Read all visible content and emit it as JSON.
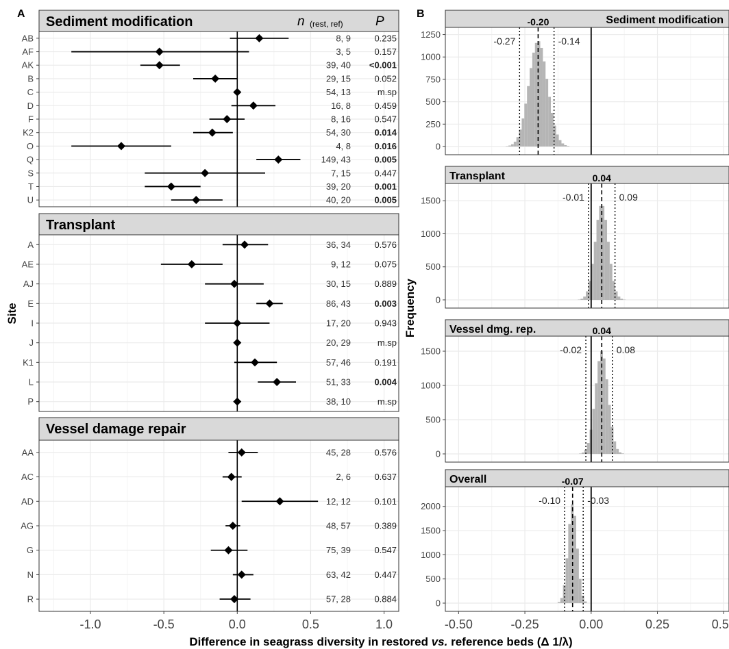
{
  "panel_a": {
    "letter": "A",
    "n_header": "n",
    "n_sub": "(rest, ref)",
    "p_header": "P",
    "ylabel": "Site",
    "xlim": [
      -1.35,
      1.1
    ],
    "xticks": [
      "-1.0",
      "-0.5",
      "0.0",
      "0.5",
      "1.0"
    ],
    "xtick_values": [
      -1.0,
      -0.5,
      0.0,
      0.5,
      1.0
    ],
    "groups": [
      {
        "title": "Sediment modification",
        "rows": [
          {
            "site": "AB",
            "est": 0.15,
            "lo": -0.05,
            "hi": 0.35,
            "n": "8,  9",
            "p": "0.235",
            "bold": false
          },
          {
            "site": "AF",
            "est": -0.53,
            "lo": -1.13,
            "hi": 0.08,
            "n": "3,  5",
            "p": "0.157",
            "bold": false
          },
          {
            "site": "AK",
            "est": -0.53,
            "lo": -0.66,
            "hi": -0.39,
            "n": "39, 40",
            "p": "<0.001",
            "bold": true
          },
          {
            "site": "B",
            "est": -0.15,
            "lo": -0.3,
            "hi": 0.0,
            "n": "29, 15",
            "p": "0.052",
            "bold": false
          },
          {
            "site": "C",
            "est": 0.0,
            "lo": null,
            "hi": null,
            "n": "54, 13",
            "p": "m.sp",
            "bold": false
          },
          {
            "site": "D",
            "est": 0.11,
            "lo": -0.04,
            "hi": 0.26,
            "n": "16,  8",
            "p": "0.459",
            "bold": false
          },
          {
            "site": "F",
            "est": -0.07,
            "lo": -0.19,
            "hi": 0.05,
            "n": "8, 16",
            "p": "0.547",
            "bold": false
          },
          {
            "site": "K2",
            "est": -0.17,
            "lo": -0.3,
            "hi": -0.03,
            "n": "54, 30",
            "p": "0.014",
            "bold": true
          },
          {
            "site": "O",
            "est": -0.79,
            "lo": -1.13,
            "hi": -0.45,
            "n": "4,  8",
            "p": "0.016",
            "bold": true
          },
          {
            "site": "Q",
            "est": 0.28,
            "lo": 0.13,
            "hi": 0.43,
            "n": "149, 43",
            "p": "0.005",
            "bold": true
          },
          {
            "site": "S",
            "est": -0.22,
            "lo": -0.63,
            "hi": 0.19,
            "n": "7, 15",
            "p": "0.447",
            "bold": false
          },
          {
            "site": "T",
            "est": -0.45,
            "lo": -0.63,
            "hi": -0.25,
            "n": "39, 20",
            "p": "0.001",
            "bold": true
          },
          {
            "site": "U",
            "est": -0.28,
            "lo": -0.45,
            "hi": -0.1,
            "n": "40, 20",
            "p": "0.005",
            "bold": true
          }
        ]
      },
      {
        "title": "Transplant",
        "rows": [
          {
            "site": "A",
            "est": 0.05,
            "lo": -0.1,
            "hi": 0.21,
            "n": "36, 34",
            "p": "0.576",
            "bold": false
          },
          {
            "site": "AE",
            "est": -0.31,
            "lo": -0.52,
            "hi": -0.1,
            "n": "9, 12",
            "p": "0.075",
            "bold": false
          },
          {
            "site": "AJ",
            "est": -0.02,
            "lo": -0.22,
            "hi": 0.18,
            "n": "30, 15",
            "p": "0.889",
            "bold": false
          },
          {
            "site": "E",
            "est": 0.22,
            "lo": 0.13,
            "hi": 0.31,
            "n": "86, 43",
            "p": "0.003",
            "bold": true
          },
          {
            "site": "I",
            "est": 0.0,
            "lo": -0.22,
            "hi": 0.22,
            "n": "17, 20",
            "p": "0.943",
            "bold": false
          },
          {
            "site": "J",
            "est": 0.0,
            "lo": null,
            "hi": null,
            "n": "20, 29",
            "p": "m.sp",
            "bold": false
          },
          {
            "site": "K1",
            "est": 0.12,
            "lo": -0.02,
            "hi": 0.27,
            "n": "57, 46",
            "p": "0.191",
            "bold": false
          },
          {
            "site": "L",
            "est": 0.27,
            "lo": 0.14,
            "hi": 0.4,
            "n": "51, 33",
            "p": "0.004",
            "bold": true
          },
          {
            "site": "P",
            "est": 0.0,
            "lo": null,
            "hi": null,
            "n": "38, 10",
            "p": "m.sp",
            "bold": false
          }
        ]
      },
      {
        "title": "Vessel damage repair",
        "rows": [
          {
            "site": "AA",
            "est": 0.03,
            "lo": -0.06,
            "hi": 0.14,
            "n": "45, 28",
            "p": "0.576",
            "bold": false
          },
          {
            "site": "AC",
            "est": -0.04,
            "lo": -0.1,
            "hi": 0.03,
            "n": "2,  6",
            "p": "0.637",
            "bold": false
          },
          {
            "site": "AD",
            "est": 0.29,
            "lo": 0.03,
            "hi": 0.55,
            "n": "12, 12",
            "p": "0.101",
            "bold": false
          },
          {
            "site": "AG",
            "est": -0.03,
            "lo": -0.08,
            "hi": 0.02,
            "n": "48, 57",
            "p": "0.389",
            "bold": false
          },
          {
            "site": "G",
            "est": -0.06,
            "lo": -0.18,
            "hi": 0.07,
            "n": "75, 39",
            "p": "0.547",
            "bold": false
          },
          {
            "site": "N",
            "est": 0.03,
            "lo": -0.03,
            "hi": 0.11,
            "n": "63, 42",
            "p": "0.447",
            "bold": false
          },
          {
            "site": "R",
            "est": -0.02,
            "lo": -0.12,
            "hi": 0.09,
            "n": "57, 28",
            "p": "0.884",
            "bold": false
          }
        ]
      }
    ]
  },
  "panel_b": {
    "letter": "B",
    "ylabel": "Frequency",
    "xlim": [
      -0.55,
      0.52
    ],
    "xticks": [
      "-0.50",
      "-0.25",
      "0.00",
      "0.25",
      "0.50"
    ],
    "xtick_values": [
      -0.5,
      -0.25,
      0.0,
      0.25,
      0.5
    ],
    "panels": [
      {
        "title": "Sediment modification",
        "mean": -0.2,
        "mean_label": "-0.20",
        "lo": -0.27,
        "lo_label": "-0.27",
        "hi": -0.14,
        "hi_label": "-0.14",
        "sd": 0.035,
        "peak": 1180,
        "ymax": 1300,
        "yticks": [
          "0",
          "250",
          "500",
          "750",
          "1000",
          "1250"
        ],
        "ytick_values": [
          0,
          250,
          500,
          750,
          1000,
          1250
        ]
      },
      {
        "title": "Transplant",
        "mean": 0.04,
        "mean_label": "0.04",
        "lo": -0.01,
        "lo_label": "-0.01",
        "hi": 0.09,
        "hi_label": "0.09",
        "sd": 0.025,
        "peak": 1450,
        "ymax": 1720,
        "yticks": [
          "0",
          "500",
          "1000",
          "1500"
        ],
        "ytick_values": [
          0,
          500,
          1000,
          1500
        ]
      },
      {
        "title": "Vessel dmg. rep.",
        "mean": 0.04,
        "mean_label": "0.04",
        "lo": -0.02,
        "lo_label": "-0.02",
        "hi": 0.08,
        "hi_label": "0.08",
        "sd": 0.024,
        "peak": 1500,
        "ymax": 1680,
        "yticks": [
          "0",
          "500",
          "1000",
          "1500"
        ],
        "ytick_values": [
          0,
          500,
          1000,
          1500
        ]
      },
      {
        "title": "Overall",
        "mean": -0.07,
        "mean_label": "-0.07",
        "lo": -0.1,
        "lo_label": "-0.10",
        "hi": -0.03,
        "hi_label": "-0.03",
        "sd": 0.017,
        "peak": 2050,
        "ymax": 2350,
        "yticks": [
          "0",
          "500",
          "1000",
          "1500",
          "2000"
        ],
        "ytick_values": [
          0,
          500,
          1000,
          1500,
          2000
        ]
      }
    ]
  },
  "shared_xlabel": "Difference in seagrass diversity in restored vs. reference beds (Δ 1/λ)",
  "colors": {
    "strip": "#d9d9d9",
    "grid": "#ebebeb",
    "bar": "#b5b5b5",
    "ink": "#000000"
  },
  "chart_data": [
    {
      "type": "scatter",
      "title": "",
      "xlabel": "Difference in seagrass diversity in restored vs. reference beds (Δ 1/λ)",
      "ylabel": "Site",
      "xlim": [
        -1.35,
        1.1
      ],
      "grid": true,
      "series": [
        {
          "name": "Sediment modification",
          "categories": [
            "AB",
            "AF",
            "AK",
            "B",
            "C",
            "D",
            "F",
            "K2",
            "O",
            "Q",
            "S",
            "T",
            "U"
          ],
          "values": [
            0.15,
            -0.53,
            -0.53,
            -0.15,
            0.0,
            0.11,
            -0.07,
            -0.17,
            -0.79,
            0.28,
            -0.22,
            -0.45,
            -0.28
          ]
        },
        {
          "name": "Transplant",
          "categories": [
            "A",
            "AE",
            "AJ",
            "E",
            "I",
            "J",
            "K1",
            "L",
            "P"
          ],
          "values": [
            0.05,
            -0.31,
            -0.02,
            0.22,
            0.0,
            0.0,
            0.12,
            0.27,
            0.0
          ]
        },
        {
          "name": "Vessel damage repair",
          "categories": [
            "AA",
            "AC",
            "AD",
            "AG",
            "G",
            "N",
            "R"
          ],
          "values": [
            0.03,
            -0.04,
            0.29,
            -0.03,
            -0.06,
            0.03,
            -0.02
          ]
        }
      ]
    },
    {
      "type": "bar",
      "title": "",
      "xlabel": "Difference in seagrass diversity in restored vs. reference beds (Δ 1/λ)",
      "ylabel": "Frequency",
      "xlim": [
        -0.55,
        0.52
      ],
      "grid": true,
      "series": [
        {
          "name": "Sediment modification",
          "mean": -0.2,
          "ci": [
            -0.27,
            -0.14
          ]
        },
        {
          "name": "Transplant",
          "mean": 0.04,
          "ci": [
            -0.01,
            0.09
          ]
        },
        {
          "name": "Vessel dmg. rep.",
          "mean": 0.04,
          "ci": [
            -0.02,
            0.08
          ]
        },
        {
          "name": "Overall",
          "mean": -0.07,
          "ci": [
            -0.1,
            -0.03
          ]
        }
      ]
    }
  ]
}
